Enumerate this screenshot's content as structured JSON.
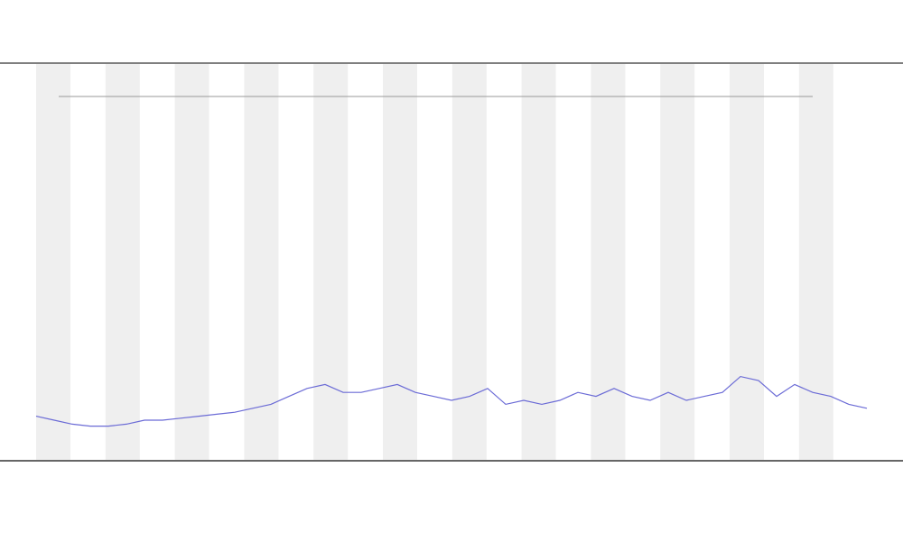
{
  "chart_data": {
    "type": "line",
    "x": [
      0,
      1,
      2,
      3,
      4,
      5,
      6,
      7,
      8,
      9,
      10,
      11,
      12,
      13,
      14,
      15,
      16,
      17,
      18,
      19,
      20,
      21,
      22,
      23,
      24,
      25,
      26,
      27,
      28,
      29,
      30,
      31,
      32,
      33,
      34,
      35,
      36,
      37,
      38,
      39,
      40,
      41,
      42,
      43,
      44,
      45,
      46
    ],
    "xlim": [
      0,
      46
    ],
    "ylim": [
      0,
      100
    ],
    "series": [
      {
        "color": "#6b6bd6",
        "values": [
          11,
          10,
          9,
          8.5,
          8.5,
          9,
          10,
          10,
          10.5,
          11,
          11.5,
          12,
          13,
          14,
          16,
          18,
          19,
          17,
          17,
          18,
          19,
          17,
          16,
          15,
          16,
          18,
          14,
          15,
          14,
          15,
          17,
          16,
          18,
          16,
          15,
          17,
          15,
          16,
          17,
          21,
          20,
          16,
          19,
          17,
          16,
          14,
          13
        ]
      }
    ]
  }
}
